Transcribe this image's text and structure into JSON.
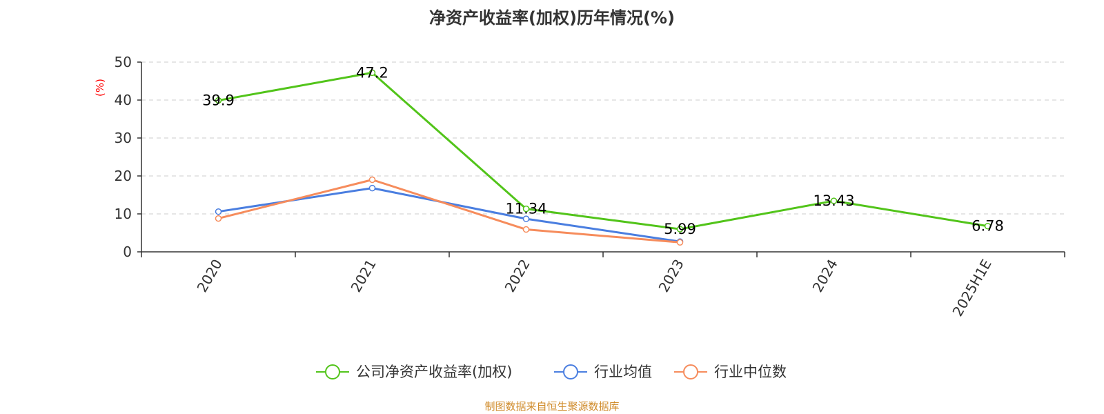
{
  "chart_data": {
    "type": "line",
    "title": "净资产收益率(加权)历年情况(%)",
    "ylabel": "(%)",
    "xlabel": "",
    "categories": [
      "2020",
      "2021",
      "2022",
      "2023",
      "2024",
      "2025H1E"
    ],
    "ylim": [
      0,
      50
    ],
    "yticks": [
      0,
      10,
      20,
      30,
      40,
      50
    ],
    "grid": true,
    "legend_position": "bottom",
    "series": [
      {
        "name": "公司净资产收益率(加权)",
        "color": "#52c41a",
        "values": [
          39.9,
          47.2,
          11.34,
          5.99,
          13.43,
          6.78
        ],
        "labels": [
          "39.9",
          "47.2",
          "11.34",
          "5.99",
          "13.43",
          "6.78"
        ]
      },
      {
        "name": "行业均值",
        "color": "#4a7ee0",
        "values": [
          10.6,
          16.8,
          8.7,
          2.7,
          null,
          null
        ]
      },
      {
        "name": "行业中位数",
        "color": "#f68c5c",
        "values": [
          8.8,
          19.0,
          5.9,
          2.5,
          null,
          null
        ]
      }
    ]
  },
  "colors": {
    "ylabel": "#ff0000",
    "source": "#d08c2c"
  },
  "source_text": "制图数据来自恒生聚源数据库"
}
